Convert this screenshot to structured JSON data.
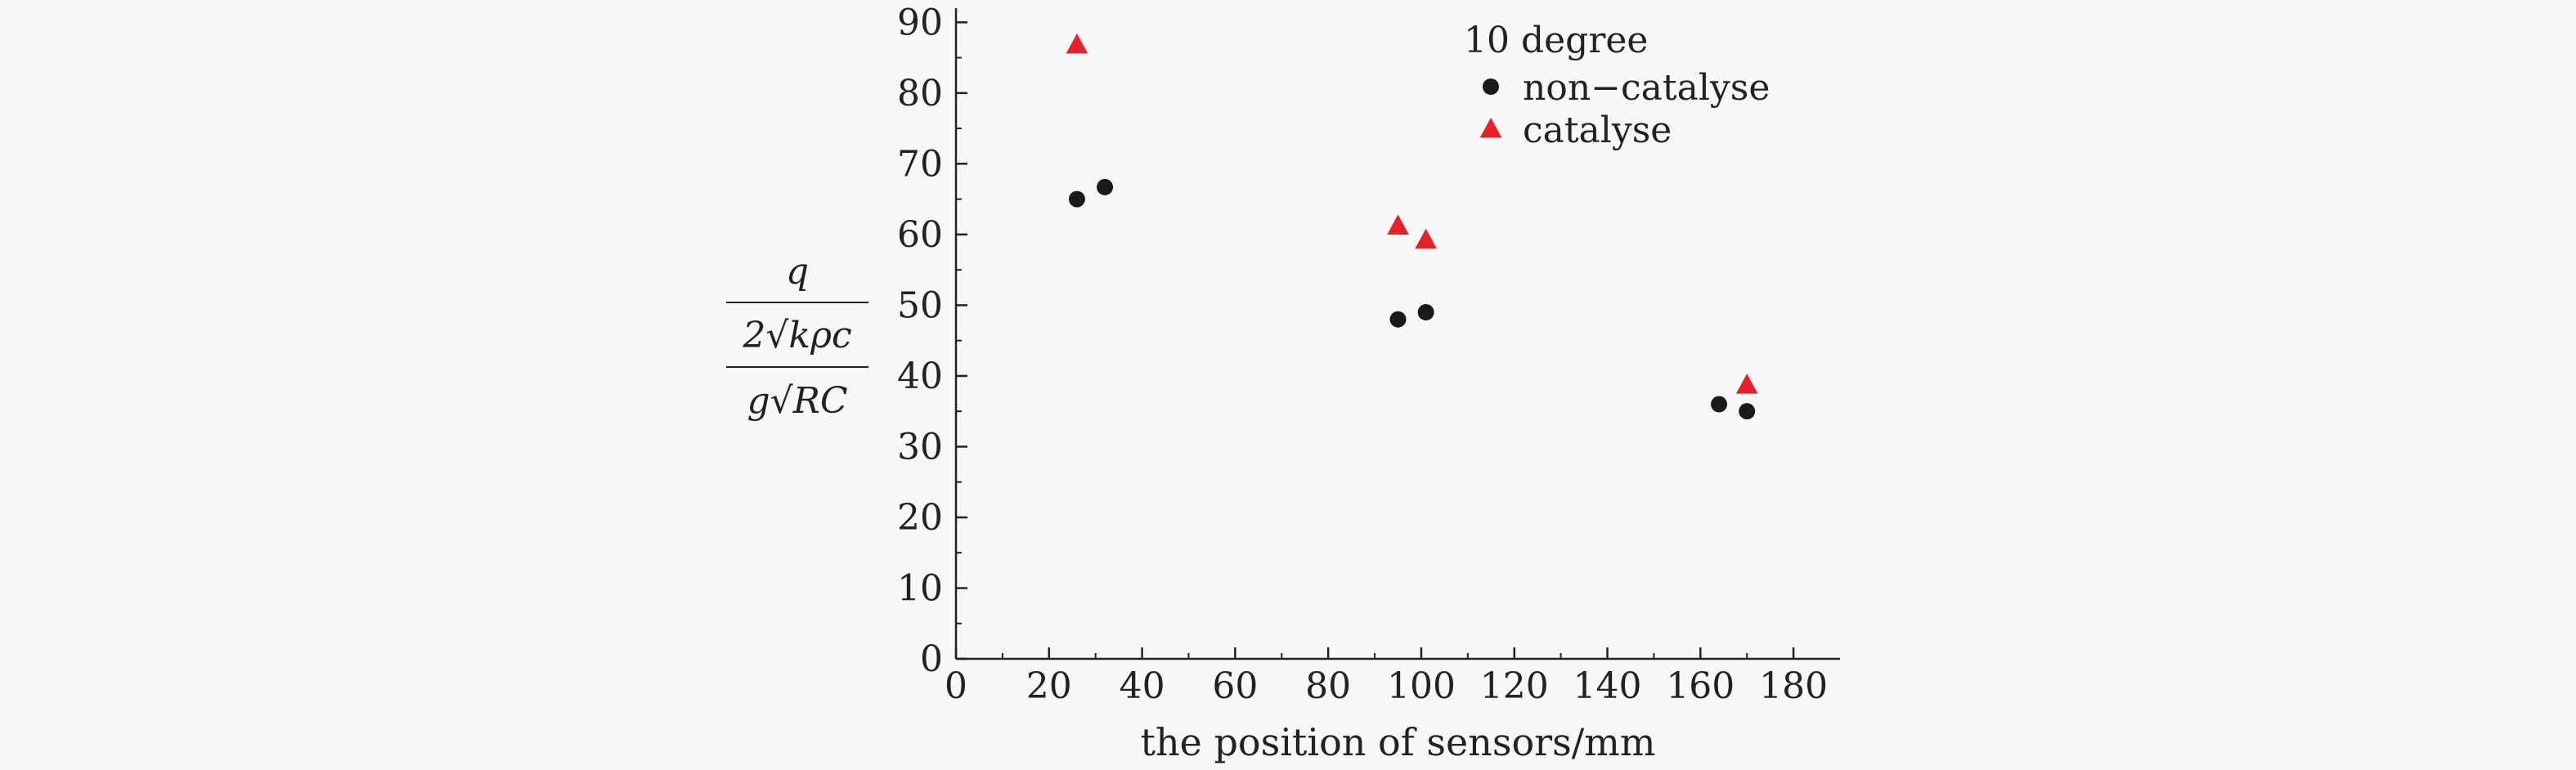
{
  "chart_data": {
    "type": "scatter",
    "title": "",
    "xlabel": "the position of sensors/mm",
    "ylabel": {
      "line1": "q",
      "line2": "2√kρc",
      "line3": "g√RC"
    },
    "xlim": [
      0,
      190
    ],
    "ylim": [
      0,
      92
    ],
    "xticks": [
      0,
      20,
      40,
      60,
      80,
      100,
      120,
      140,
      160,
      180
    ],
    "yticks": [
      0,
      10,
      20,
      30,
      40,
      50,
      60,
      70,
      80,
      90
    ],
    "legend": {
      "title": "10 degree",
      "position": "top-right"
    },
    "grid": false,
    "series": [
      {
        "name": "non−catalyse",
        "marker": "circle",
        "color": "#1a1a1a",
        "points": [
          {
            "x": 26,
            "y": 65
          },
          {
            "x": 32,
            "y": 66.7
          },
          {
            "x": 95,
            "y": 48
          },
          {
            "x": 101,
            "y": 49
          },
          {
            "x": 164,
            "y": 36
          },
          {
            "x": 170,
            "y": 35
          }
        ]
      },
      {
        "name": "catalyse",
        "marker": "triangle",
        "color": "#e8202a",
        "points": [
          {
            "x": 26,
            "y": 86.8
          },
          {
            "x": 95,
            "y": 61.2
          },
          {
            "x": 101,
            "y": 59.2
          },
          {
            "x": 170,
            "y": 38.7
          }
        ]
      }
    ]
  }
}
